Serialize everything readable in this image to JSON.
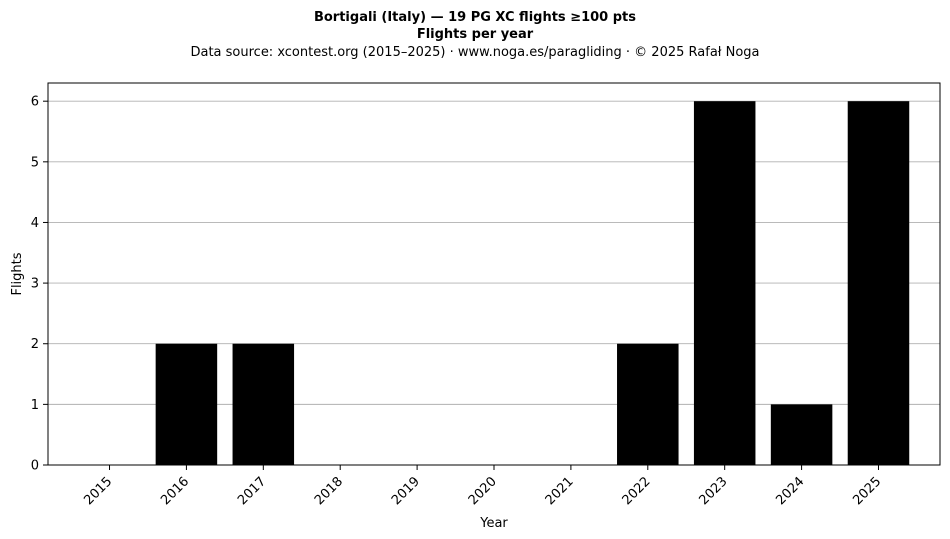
{
  "chart_data": {
    "type": "bar",
    "title": "Bortigali (Italy)  —  19 PG XC flights ≥100 pts",
    "title_line2": "Flights per year",
    "subtitle": "Data source: xcontest.org (2015–2025)  ·  www.noga.es/paragliding  ·  © 2025 Rafał Noga",
    "xlabel": "Year",
    "ylabel": "Flights",
    "categories": [
      "2015",
      "2016",
      "2017",
      "2018",
      "2019",
      "2020",
      "2021",
      "2022",
      "2023",
      "2024",
      "2025"
    ],
    "values": [
      0,
      2,
      2,
      0,
      0,
      0,
      0,
      2,
      6,
      1,
      6
    ],
    "ylim": [
      0,
      6.3
    ],
    "yticks": [
      0,
      1,
      2,
      3,
      4,
      5,
      6
    ],
    "grid": "y",
    "bar_color": "#000000",
    "grid_color": "#b0b0b0"
  }
}
